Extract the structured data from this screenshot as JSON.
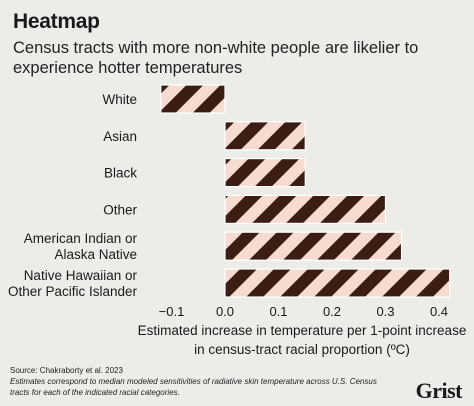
{
  "header": {
    "title": "Heatmap",
    "subtitle": "Census tracts with more non-white people are likelier to experience hotter temperatures"
  },
  "chart_data": {
    "type": "bar",
    "orientation": "horizontal",
    "title": "Census tracts with more non-white people are likelier to experience hotter temperatures",
    "categories": [
      "White",
      "Asian",
      "Black",
      "Other",
      "American Indian or Alaska Native",
      "Native Hawaiian or Other Pacific Islander"
    ],
    "category_lines": [
      [
        "White"
      ],
      [
        "Asian"
      ],
      [
        "Black"
      ],
      [
        "Other"
      ],
      [
        "American Indian or",
        "Alaska Native"
      ],
      [
        "Native Hawaiian or",
        "Other Pacific Islander"
      ]
    ],
    "values": [
      -0.12,
      0.15,
      0.15,
      0.3,
      0.33,
      0.42
    ],
    "xlim": [
      -0.15,
      0.43
    ],
    "xticks": [
      -0.1,
      0.0,
      0.1,
      0.2,
      0.3,
      0.4
    ],
    "xtick_labels": [
      "−0.1",
      "0.0",
      "0.1",
      "0.2",
      "0.3",
      "0.4"
    ],
    "xlabel_lines": [
      "Estimated increase in temperature per 1-point increase",
      "in census-tract racial proportion (ºC)"
    ],
    "ylabel": "",
    "grid": false,
    "colors": {
      "stripe_dark": "#3b1d14",
      "stripe_light": "#f6dcd0"
    }
  },
  "footer": {
    "source": "Source: Chakraborty et al. 2023",
    "note": "Estimates correspond to median modeled sensitivities of radiative skin temperature across U.S. Census tracts for each of the indicated racial categories.",
    "brand": "Grist"
  }
}
